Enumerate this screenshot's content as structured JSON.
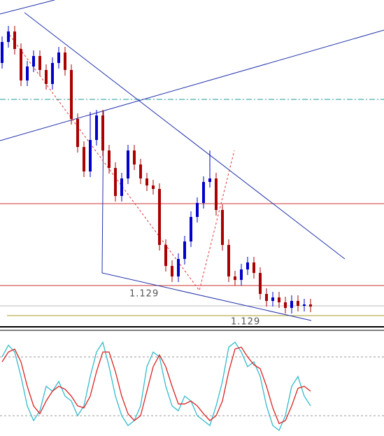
{
  "chart_data": [
    {
      "type": "candlestick",
      "ylim": [
        1.1287,
        1.138
      ],
      "up_color": "#0000cc",
      "down_color": "#aa0000",
      "annotations": [
        "1.129",
        "1.129"
      ],
      "open": [
        1.1362,
        1.1368,
        1.1371,
        1.1366,
        1.1357,
        1.1361,
        1.1364,
        1.136,
        1.1356,
        1.1362,
        1.1365,
        1.136,
        1.1346,
        1.1338,
        1.1331,
        1.134,
        1.1347,
        1.1337,
        1.1332,
        1.1324,
        1.1329,
        1.1337,
        1.1333,
        1.1329,
        1.1327,
        1.1326,
        1.131,
        1.1304,
        1.1301,
        1.1306,
        1.1311,
        1.1318,
        1.1322,
        1.1328,
        1.1329,
        1.132,
        1.131,
        1.1301,
        1.13,
        1.1303,
        1.1305,
        1.1302,
        1.1296,
        1.1294,
        1.1295,
        1.12936,
        1.1292,
        1.1294,
        1.12926,
        1.1293
      ],
      "high": [
        1.13696,
        1.13726,
        1.13726,
        1.13676,
        1.13626,
        1.13656,
        1.13656,
        1.13616,
        1.13636,
        1.13666,
        1.13666,
        1.13616,
        1.13476,
        1.13396,
        1.1348,
        1.13486,
        1.13486,
        1.13386,
        1.13336,
        1.13306,
        1.13386,
        1.13386,
        1.13346,
        1.13306,
        1.13286,
        1.13276,
        1.13116,
        1.13056,
        1.13076,
        1.13126,
        1.13196,
        1.13236,
        1.13296,
        1.1337,
        1.13306,
        1.13216,
        1.13116,
        1.13026,
        1.13046,
        1.13066,
        1.13066,
        1.13036,
        1.12976,
        1.12966,
        1.12966,
        1.12952,
        1.12956,
        1.12956,
        1.12946,
        1.12946
      ],
      "low": [
        1.13604,
        1.13664,
        1.13644,
        1.13554,
        1.13554,
        1.13594,
        1.13584,
        1.13544,
        1.13544,
        1.13604,
        1.13584,
        1.13444,
        1.13364,
        1.13294,
        1.13294,
        1.13384,
        1.13354,
        1.13304,
        1.13224,
        1.13224,
        1.13274,
        1.13314,
        1.13274,
        1.13254,
        1.13244,
        1.13084,
        1.13024,
        1.12994,
        1.12994,
        1.13044,
        1.13094,
        1.13164,
        1.13204,
        1.13264,
        1.13184,
        1.13084,
        1.12994,
        1.12984,
        1.12984,
        1.13014,
        1.13004,
        1.12944,
        1.12924,
        1.12924,
        1.1292,
        1.12904,
        1.12904,
        1.1291,
        1.1291,
        1.12908
      ],
      "close": [
        1.1368,
        1.1371,
        1.1366,
        1.1357,
        1.1361,
        1.1364,
        1.136,
        1.1356,
        1.1362,
        1.1365,
        1.136,
        1.1346,
        1.1338,
        1.1331,
        1.134,
        1.1347,
        1.1337,
        1.1332,
        1.1324,
        1.1329,
        1.1337,
        1.1333,
        1.1329,
        1.1327,
        1.1326,
        1.131,
        1.1304,
        1.1301,
        1.1306,
        1.1311,
        1.1318,
        1.1322,
        1.1328,
        1.1329,
        1.132,
        1.131,
        1.1301,
        1.13,
        1.1303,
        1.1305,
        1.1302,
        1.1296,
        1.1294,
        1.1295,
        1.12936,
        1.1292,
        1.1294,
        1.12926,
        1.1293,
        1.12924
      ]
    },
    {
      "type": "line",
      "ylim": [
        0,
        100
      ],
      "levels": [
        20,
        80
      ],
      "series": [
        {
          "color": "#33bbcc",
          "values": [
            80,
            92,
            85,
            60,
            30,
            15,
            25,
            50,
            45,
            55,
            40,
            35,
            20,
            30,
            60,
            85,
            95,
            70,
            40,
            20,
            10,
            15,
            30,
            70,
            85,
            80,
            50,
            30,
            25,
            40,
            35,
            20,
            15,
            10,
            30,
            55,
            90,
            95,
            85,
            70,
            75,
            60,
            30,
            10,
            5,
            20,
            50,
            60,
            40,
            30
          ]
        },
        {
          "color": "#dd2222",
          "values": [
            75,
            85,
            88,
            75,
            50,
            30,
            22,
            35,
            45,
            50,
            47,
            40,
            30,
            28,
            40,
            65,
            85,
            85,
            65,
            40,
            22,
            15,
            20,
            45,
            70,
            82,
            70,
            50,
            32,
            32,
            35,
            30,
            22,
            15,
            20,
            35,
            65,
            88,
            90,
            80,
            72,
            68,
            50,
            28,
            12,
            15,
            30,
            48,
            50,
            45
          ]
        }
      ]
    }
  ]
}
